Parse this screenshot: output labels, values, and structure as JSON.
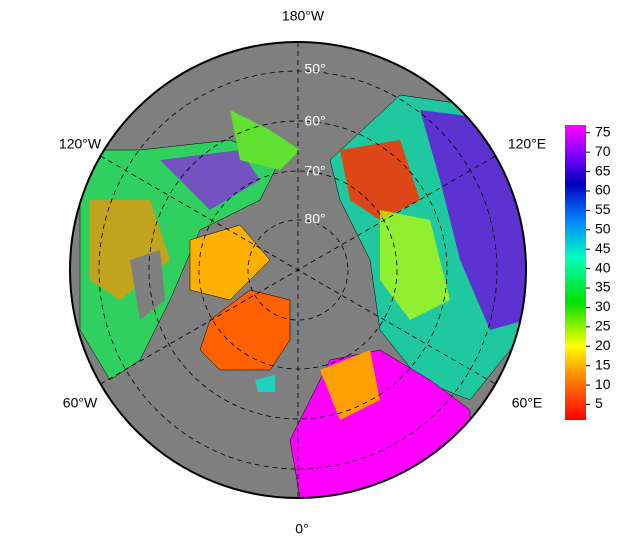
{
  "map": {
    "longitude_labels": [
      "180°W",
      "120°W",
      "60°W",
      "0°",
      "60°E",
      "120°E"
    ],
    "latitude_labels": [
      "50°",
      "60°",
      "70°",
      "80°"
    ],
    "colorbar": {
      "lim": [
        1,
        77
      ],
      "ticks": [
        5,
        10,
        15,
        20,
        25,
        30,
        35,
        40,
        45,
        50,
        55,
        60,
        65,
        70,
        75
      ]
    }
  }
}
